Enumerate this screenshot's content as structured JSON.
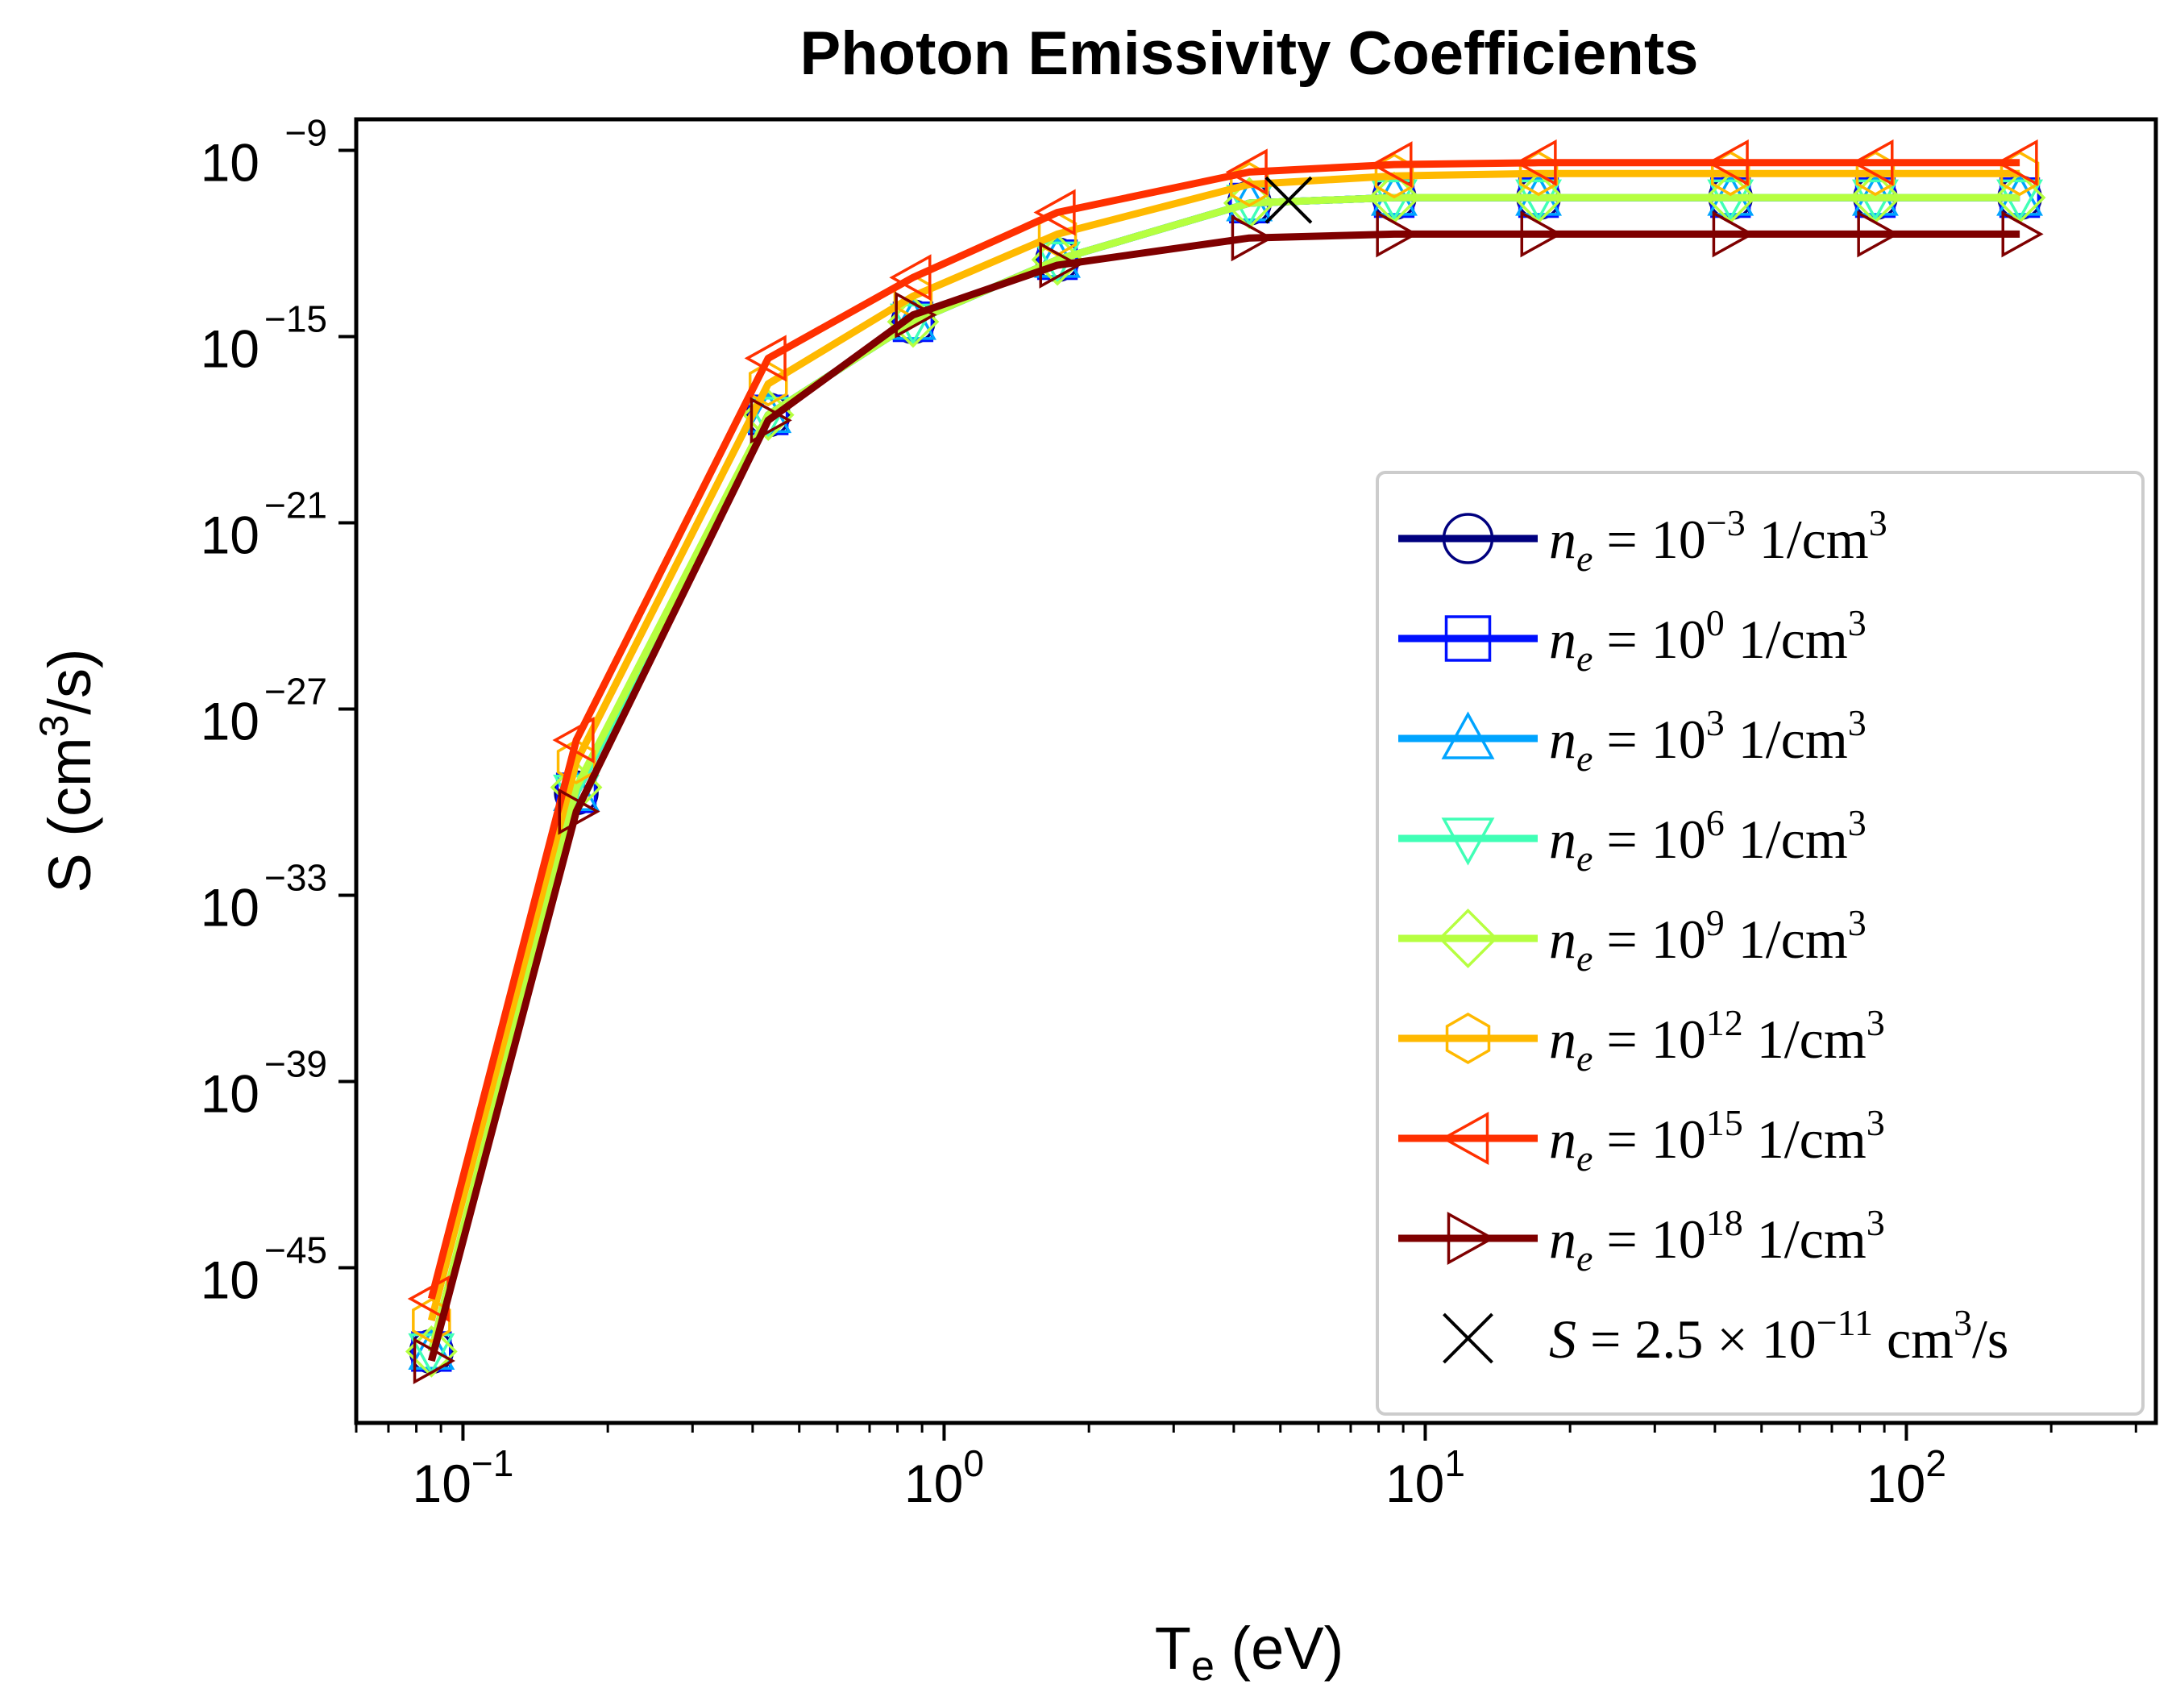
{
  "chart_data": {
    "type": "line",
    "title": "Photon Emissivity Coefficients",
    "xlabel": {
      "base": "T",
      "sub": "e",
      "rest": " (eV)"
    },
    "ylabel": {
      "pre": "S (cm",
      "sup": "3",
      "post": "/s)"
    },
    "xscale": "log",
    "yscale": "log",
    "xlim": [
      0.06,
      330
    ],
    "ylim": [
      1e-50,
      1e-08
    ],
    "xticks": [
      {
        "base": "10",
        "exp": "−1",
        "value": 0.1
      },
      {
        "base": "10",
        "exp": "0",
        "value": 1
      },
      {
        "base": "10",
        "exp": "1",
        "value": 10
      },
      {
        "base": "10",
        "exp": "2",
        "value": 100
      }
    ],
    "yticks": [
      {
        "base": "10",
        "exp": "−9",
        "value": 1e-09
      },
      {
        "base": "10",
        "exp": "−15",
        "value": 1e-15
      },
      {
        "base": "10",
        "exp": "−21",
        "value": 1e-21
      },
      {
        "base": "10",
        "exp": "−27",
        "value": 1e-27
      },
      {
        "base": "10",
        "exp": "−33",
        "value": 1e-33
      },
      {
        "base": "10",
        "exp": "−39",
        "value": 1e-39
      },
      {
        "base": "10",
        "exp": "−45",
        "value": 1e-45
      }
    ],
    "grid": false,
    "legend_position": "lower-right",
    "x": [
      0.086,
      0.172,
      0.431,
      0.862,
      1.72,
      4.31,
      8.62,
      17.2,
      43.1,
      86.2,
      172
    ],
    "series": [
      {
        "name": "n_e = 10^-3 1/cm^3",
        "label_pre": "n",
        "label_sub": "e",
        "label_mid": " = 10",
        "label_sup": "−3",
        "label_post": " 1/cm",
        "label_sup2": "3",
        "color": "#00007f",
        "marker": "circle",
        "values": [
          2e-48,
          2e-30,
          3e-18,
          3e-15,
          3e-13,
          2e-11,
          3e-11,
          3e-11,
          3e-11,
          3e-11,
          3e-11
        ]
      },
      {
        "name": "n_e = 10^0 1/cm^3",
        "label_pre": "n",
        "label_sub": "e",
        "label_mid": " = 10",
        "label_sup": "0",
        "label_post": " 1/cm",
        "label_sup2": "3",
        "color": "#0010ff",
        "marker": "square",
        "values": [
          2e-48,
          2e-30,
          3e-18,
          3e-15,
          3e-13,
          2e-11,
          3e-11,
          3e-11,
          3e-11,
          3e-11,
          3e-11
        ]
      },
      {
        "name": "n_e = 10^3 1/cm^3",
        "label_pre": "n",
        "label_sub": "e",
        "label_mid": " = 10",
        "label_sup": "3",
        "label_post": " 1/cm",
        "label_sup2": "3",
        "color": "#00a4ff",
        "marker": "triangle-up",
        "values": [
          2e-48,
          2e-30,
          3e-18,
          3e-15,
          3e-13,
          2e-11,
          3e-11,
          3e-11,
          3e-11,
          3e-11,
          3e-11
        ]
      },
      {
        "name": "n_e = 10^6 1/cm^3",
        "label_pre": "n",
        "label_sub": "e",
        "label_mid": " = 10",
        "label_sup": "6",
        "label_post": " 1/cm",
        "label_sup2": "3",
        "color": "#40ffb6",
        "marker": "triangle-down",
        "values": [
          2e-48,
          2e-30,
          3e-18,
          3e-15,
          3e-13,
          2e-11,
          3e-11,
          3e-11,
          3e-11,
          3e-11,
          3e-11
        ]
      },
      {
        "name": "n_e = 10^9 1/cm^3",
        "label_pre": "n",
        "label_sub": "e",
        "label_mid": " = 10",
        "label_sup": "9",
        "label_post": " 1/cm",
        "label_sup2": "3",
        "color": "#b6ff40",
        "marker": "diamond",
        "values": [
          2e-48,
          3e-30,
          3e-18,
          3e-15,
          3e-13,
          2e-11,
          3e-11,
          3e-11,
          3e-11,
          3e-11,
          3e-11
        ]
      },
      {
        "name": "n_e = 10^12 1/cm^3",
        "label_pre": "n",
        "label_sub": "e",
        "label_mid": " = 10",
        "label_sup": "12",
        "label_post": " 1/cm",
        "label_sup2": "3",
        "color": "#ffb900",
        "marker": "hexagon",
        "values": [
          2e-47,
          2e-29,
          3e-17,
          2e-14,
          2e-12,
          8e-11,
          1.5e-10,
          1.8e-10,
          1.8e-10,
          1.8e-10,
          1.8e-10
        ]
      },
      {
        "name": "n_e = 10^15 1/cm^3",
        "label_pre": "n",
        "label_sub": "e",
        "label_mid": " = 10",
        "label_sup": "15",
        "label_post": " 1/cm",
        "label_sup2": "3",
        "color": "#ff3000",
        "marker": "triangle-left",
        "values": [
          1e-46,
          1e-28,
          2e-16,
          8e-14,
          1e-11,
          2e-10,
          3.5e-10,
          4e-10,
          4e-10,
          4e-10,
          4e-10
        ]
      },
      {
        "name": "n_e = 10^18 1/cm^3",
        "label_pre": "n",
        "label_sub": "e",
        "label_mid": " = 10",
        "label_sup": "18",
        "label_post": " 1/cm",
        "label_sup2": "3",
        "color": "#7f0000",
        "marker": "triangle-right",
        "values": [
          1e-48,
          5e-31,
          2e-18,
          5e-15,
          2e-13,
          1.5e-12,
          2e-12,
          2e-12,
          2e-12,
          2e-12,
          2e-12
        ]
      }
    ],
    "annotation": {
      "label_pre": "S",
      "label_mid": " = 2.5 × 10",
      "label_sup": "−11",
      "label_post": " cm",
      "label_sup2": "3",
      "label_end": "/s",
      "x": 5.2,
      "y": 2.5e-11,
      "marker": "x",
      "color": "#000000"
    }
  }
}
